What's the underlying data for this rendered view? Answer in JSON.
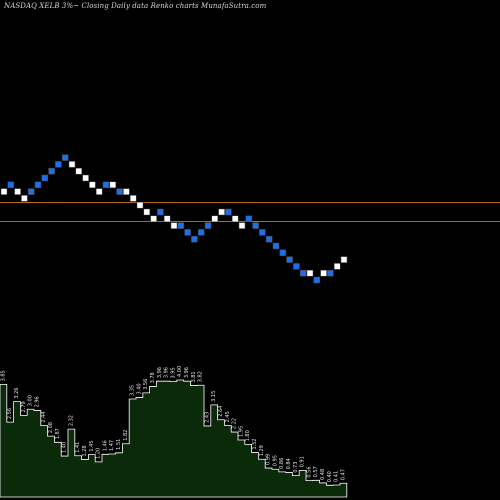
{
  "header": {
    "title": "NASDAQ XELB 3%~   Closing Daily data  Renko  charts MunafaSutra.com"
  },
  "colors": {
    "background": "#000000",
    "up_brick": "#ffffff",
    "down_brick": "#1f6fe6",
    "brick_outline": "#444444",
    "hline": "#b5651d",
    "volume_fill": "#0a2a0a",
    "volume_line": "#ffffff",
    "label": "#e6e6e6"
  },
  "chart_data": {
    "type": "renko",
    "brick_levels": [
      3,
      4,
      3,
      2,
      3,
      4,
      5,
      6,
      7,
      8,
      7,
      6,
      5,
      4,
      3,
      4,
      4,
      3,
      3,
      2,
      1,
      0,
      -1,
      0,
      -1,
      -2,
      -2,
      -3,
      -4,
      -3,
      -2,
      -1,
      0,
      0,
      -1,
      -2,
      -1,
      -2,
      -3,
      -4,
      -5,
      -6,
      -7,
      -8,
      -9,
      -9,
      -10,
      -9,
      -9,
      -8,
      -7
    ],
    "brick_directions": [
      "up",
      "down",
      "up",
      "up",
      "down",
      "down",
      "down",
      "down",
      "down",
      "down",
      "up",
      "up",
      "up",
      "up",
      "up",
      "down",
      "up",
      "down",
      "up",
      "up",
      "up",
      "up",
      "up",
      "down",
      "up",
      "up",
      "down",
      "down",
      "down",
      "down",
      "down",
      "up",
      "up",
      "down",
      "up",
      "up",
      "down",
      "down",
      "down",
      "down",
      "down",
      "down",
      "down",
      "down",
      "down",
      "up",
      "down",
      "up",
      "down",
      "up",
      "up"
    ],
    "horizontal_lines": [
      1.4,
      -1.4
    ],
    "volume_labels": [
      "3.85",
      "2.56",
      "3.26",
      "2.79",
      "3.00",
      "2.96",
      "2.44",
      "2.08",
      "1.87",
      "1.40",
      "2.32",
      "1.41",
      "1.28",
      "1.45",
      "1.20",
      "1.46",
      "1.47",
      "1.51",
      "1.82",
      "3.35",
      "3.40",
      "3.56",
      "3.78",
      "3.96",
      "3.96",
      "3.95",
      "4.00",
      "3.96",
      "3.81",
      "3.82",
      "2.43",
      "3.15",
      "2.64",
      "2.45",
      "2.22",
      "1.95",
      "1.80",
      "1.52",
      "1.29",
      "0.99",
      "0.95",
      "0.86",
      "0.84",
      "0.73",
      "0.91",
      "0.56",
      "0.57",
      "0.48",
      "0.40",
      "0.41",
      "0.47"
    ],
    "volume_values": [
      3.85,
      2.56,
      3.26,
      2.79,
      3.0,
      2.96,
      2.44,
      2.08,
      1.87,
      1.4,
      2.32,
      1.41,
      1.28,
      1.45,
      1.2,
      1.46,
      1.47,
      1.51,
      1.82,
      3.35,
      3.4,
      3.56,
      3.78,
      3.96,
      3.96,
      3.95,
      4.0,
      3.96,
      3.81,
      3.82,
      2.43,
      3.15,
      2.64,
      2.45,
      2.22,
      1.95,
      1.8,
      1.52,
      1.29,
      0.99,
      0.95,
      0.86,
      0.84,
      0.73,
      0.91,
      0.56,
      0.57,
      0.48,
      0.4,
      0.41,
      0.47
    ]
  }
}
